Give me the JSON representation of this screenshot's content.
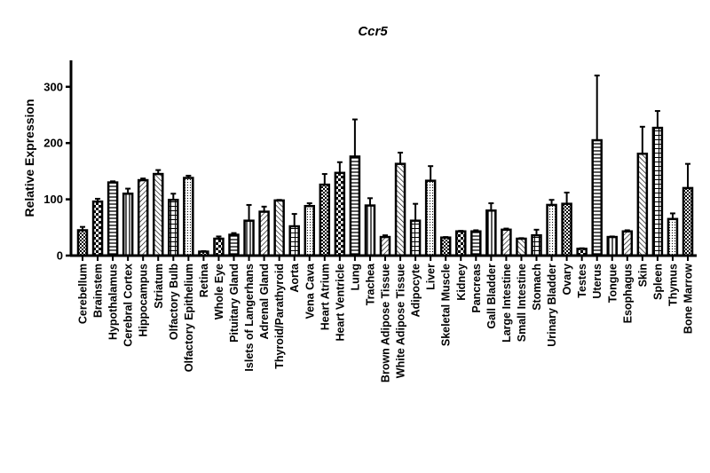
{
  "chart_data": {
    "type": "bar",
    "title": "Ccr5",
    "xlabel": "",
    "ylabel": "Relative Expression",
    "ylim": [
      0,
      347
    ],
    "yticks": [
      0,
      100,
      200,
      300
    ],
    "grid": false,
    "categories": [
      "Cerebellum",
      "Brainstem",
      "Hypothalamus",
      "Cerebral Cortex",
      "Hippocampus",
      "Striatum",
      "Olfactory Bulb",
      "Olfactory Epithelium",
      "Retina",
      "Whole Eye",
      "Pituitary Gland",
      "Islets of Langerhans",
      "Adrenal Gland",
      "Thyroid/Parathyroid",
      "Aorta",
      "Vena Cava",
      "Heart Atrium",
      "Heart Ventricle",
      "Lung",
      "Trachea",
      "Brown Adipose Tissue",
      "White Adipose Tissue",
      "Adipocyte",
      "Liver",
      "Skeletal Muscle",
      "Kidney",
      "Pancreas",
      "Gall Bladder",
      "Large Intestine",
      "Small Intestine",
      "Stomach",
      "Urinary Bladder",
      "Ovary",
      "Testes",
      "Uterus",
      "Tongue",
      "Esophagus",
      "Skin",
      "Spleen",
      "Thymus",
      "Bone Marrow"
    ],
    "values": [
      45,
      96,
      130,
      110,
      134,
      145,
      99,
      138,
      7,
      30,
      37,
      62,
      78,
      98,
      52,
      88,
      126,
      147,
      176,
      89,
      33,
      163,
      62,
      133,
      32,
      43,
      43,
      80,
      46,
      30,
      36,
      90,
      92,
      12,
      205,
      33,
      43,
      181,
      227,
      65,
      120
    ],
    "errors": [
      6,
      5,
      2,
      9,
      3,
      7,
      11,
      4,
      1,
      4,
      3,
      28,
      9,
      1,
      22,
      5,
      19,
      19,
      66,
      13,
      3,
      20,
      30,
      26,
      1,
      1,
      2,
      13,
      2,
      1,
      10,
      9,
      20,
      1,
      115,
      1,
      2,
      48,
      30,
      10,
      43
    ]
  }
}
